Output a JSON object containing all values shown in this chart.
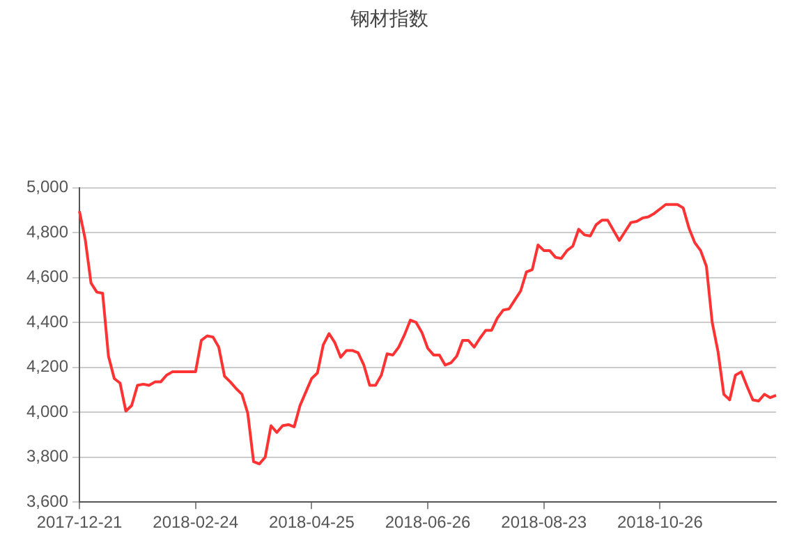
{
  "chart_data": {
    "type": "line",
    "title": "钢材指数",
    "categories": [
      "2017-12-21",
      null,
      null,
      null,
      null,
      null,
      null,
      null,
      null,
      null,
      null,
      null,
      null,
      null,
      null,
      null,
      null,
      null,
      null,
      null,
      "2018-02-24",
      null,
      null,
      null,
      null,
      null,
      null,
      null,
      null,
      null,
      null,
      null,
      null,
      null,
      null,
      null,
      null,
      null,
      null,
      null,
      "2018-04-25",
      null,
      null,
      null,
      null,
      null,
      null,
      null,
      null,
      null,
      null,
      null,
      null,
      null,
      null,
      null,
      null,
      null,
      null,
      null,
      "2018-06-26",
      null,
      null,
      null,
      null,
      null,
      null,
      null,
      null,
      null,
      null,
      null,
      null,
      null,
      null,
      null,
      null,
      null,
      null,
      null,
      "2018-08-23",
      null,
      null,
      null,
      null,
      null,
      null,
      null,
      null,
      null,
      null,
      null,
      null,
      null,
      null,
      null,
      null,
      null,
      null,
      null,
      "2018-10-26",
      null,
      null,
      null,
      null,
      null,
      null,
      null,
      null,
      null,
      null,
      null,
      null,
      null,
      null,
      null,
      null,
      null,
      null,
      null,
      null
    ],
    "ylim": [
      3600,
      5000
    ],
    "yticks": [
      {
        "value": 3600,
        "label": "3,600"
      },
      {
        "value": 3800,
        "label": "3,800"
      },
      {
        "value": 4000,
        "label": "4,000"
      },
      {
        "value": 4200,
        "label": "4,200"
      },
      {
        "value": 4400,
        "label": "4,400"
      },
      {
        "value": 4600,
        "label": "4,600"
      },
      {
        "value": 4800,
        "label": "4,800"
      },
      {
        "value": 5000,
        "label": "5,000"
      }
    ],
    "grid": "y",
    "legend": false,
    "marker": "none",
    "line_style": "solid",
    "series": [
      {
        "color": "#ff3333",
        "values": [
          4895,
          4770,
          4575,
          4535,
          4530,
          4250,
          4150,
          4130,
          4005,
          4030,
          4120,
          4125,
          4120,
          4135,
          4135,
          4165,
          4180,
          4180,
          4180,
          4180,
          4180,
          4320,
          4340,
          4335,
          4290,
          4160,
          4135,
          4105,
          4080,
          3995,
          3780,
          3770,
          3800,
          3940,
          3910,
          3940,
          3945,
          3935,
          4030,
          4090,
          4150,
          4175,
          4300,
          4350,
          4310,
          4245,
          4275,
          4275,
          4265,
          4210,
          4120,
          4120,
          4165,
          4260,
          4255,
          4290,
          4345,
          4410,
          4400,
          4355,
          4285,
          4255,
          4255,
          4210,
          4220,
          4250,
          4320,
          4320,
          4290,
          4330,
          4365,
          4365,
          4420,
          4455,
          4460,
          4500,
          4540,
          4625,
          4635,
          4745,
          4720,
          4720,
          4690,
          4685,
          4720,
          4740,
          4815,
          4790,
          4785,
          4835,
          4855,
          4855,
          4810,
          4765,
          4805,
          4845,
          4850,
          4865,
          4870,
          4885,
          4905,
          4925,
          4925,
          4925,
          4910,
          4820,
          4755,
          4720,
          4650,
          4400,
          4270,
          4080,
          4055,
          4165,
          4180,
          4115,
          4055,
          4050,
          4080,
          4065,
          4075
        ]
      }
    ]
  }
}
